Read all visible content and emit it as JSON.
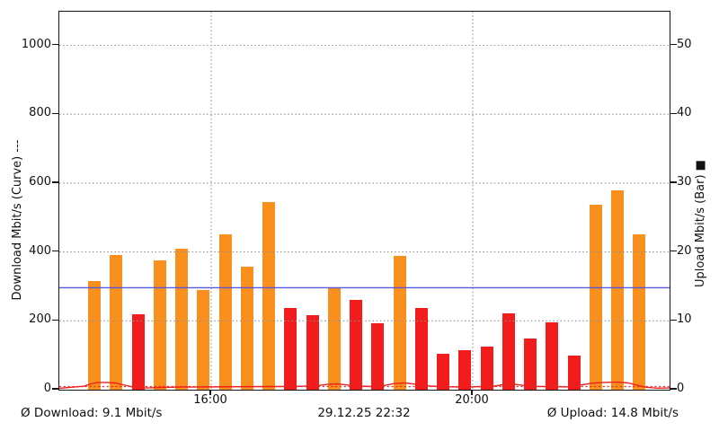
{
  "colors": {
    "bar_high": "#f9901d",
    "bar_low": "#f21c1c",
    "avg_upload_line": "#5456e0",
    "curve_line": "#ee2020",
    "avg_download_line": "#ee2020",
    "grid": "#8f8f8f",
    "axis": "#151515",
    "background": "#ffffff"
  },
  "chart_data": {
    "type": "bar+line",
    "title": "",
    "left_axis": {
      "label": "Download Mbit/s (Curve) ---",
      "unit": "Mbit/s",
      "ticks": [
        0,
        200,
        400,
        600,
        800,
        1000
      ],
      "range_shown": [
        0,
        1090
      ]
    },
    "right_axis": {
      "label": "Upload Mbit/s (Bar) ■",
      "unit": "Mbit/s",
      "ticks": [
        0,
        10,
        20,
        30,
        40,
        50
      ],
      "range_shown": [
        0,
        54.9
      ]
    },
    "x_axis": {
      "tick_labels": [
        "16:00",
        "20:00"
      ],
      "grid": "dotted"
    },
    "bars": {
      "series_name": "Upload",
      "axis": "right",
      "values": [
        15.8,
        19.6,
        10.9,
        18.8,
        20.5,
        14.5,
        22.5,
        17.8,
        27.3,
        11.9,
        10.8,
        14.8,
        13.1,
        9.6,
        19.4,
        11.8,
        5.2,
        5.7,
        6.2,
        11.1,
        7.4,
        9.8,
        5.0,
        26.9,
        28.9,
        22.5
      ],
      "colors": [
        "orange",
        "orange",
        "red",
        "orange",
        "orange",
        "orange",
        "orange",
        "orange",
        "orange",
        "red",
        "red",
        "orange",
        "red",
        "red",
        "orange",
        "red",
        "red",
        "red",
        "red",
        "red",
        "red",
        "red",
        "red",
        "orange",
        "orange",
        "orange"
      ]
    },
    "curve": {
      "series_name": "Download",
      "axis": "left",
      "points": [
        [
          65,
          4
        ],
        [
          78,
          7
        ],
        [
          92,
          10
        ],
        [
          100,
          17
        ],
        [
          108,
          21
        ],
        [
          118,
          21
        ],
        [
          128,
          19
        ],
        [
          138,
          13
        ],
        [
          150,
          6
        ],
        [
          163,
          5
        ],
        [
          178,
          6.5
        ],
        [
          200,
          7.5
        ],
        [
          230,
          8
        ],
        [
          262,
          8.5
        ],
        [
          295,
          9
        ],
        [
          325,
          9.5
        ],
        [
          350,
          11
        ],
        [
          363,
          15.5
        ],
        [
          374,
          17
        ],
        [
          386,
          13.5
        ],
        [
          400,
          10.5
        ],
        [
          413,
          9
        ],
        [
          426,
          12
        ],
        [
          438,
          18
        ],
        [
          450,
          19.5
        ],
        [
          463,
          15
        ],
        [
          478,
          10.5
        ],
        [
          495,
          8.5
        ],
        [
          515,
          7.5
        ],
        [
          535,
          9
        ],
        [
          549,
          10.5
        ],
        [
          560,
          15
        ],
        [
          572,
          16
        ],
        [
          584,
          11.5
        ],
        [
          598,
          9.5
        ],
        [
          614,
          9
        ],
        [
          630,
          8
        ],
        [
          644,
          13
        ],
        [
          657,
          18.5
        ],
        [
          670,
          21
        ],
        [
          686,
          22
        ],
        [
          698,
          19.5
        ],
        [
          708,
          13
        ],
        [
          718,
          7
        ],
        [
          730,
          4.5
        ],
        [
          744,
          5
        ]
      ]
    },
    "reference_lines": {
      "avg_upload": {
        "value": 14.8,
        "axis": "right",
        "style": "solid",
        "color": "blue"
      },
      "avg_download": {
        "value": 9.1,
        "axis": "left",
        "style": "dotted",
        "color": "red"
      }
    },
    "legend_position": "axis-labels",
    "grid_on": true
  },
  "footer": {
    "avg_download_text": "Ø Download: 9.1 Mbit/s",
    "timestamp_text": "29.12.25 22:32",
    "avg_upload_text": "Ø Upload: 14.8 Mbit/s"
  }
}
